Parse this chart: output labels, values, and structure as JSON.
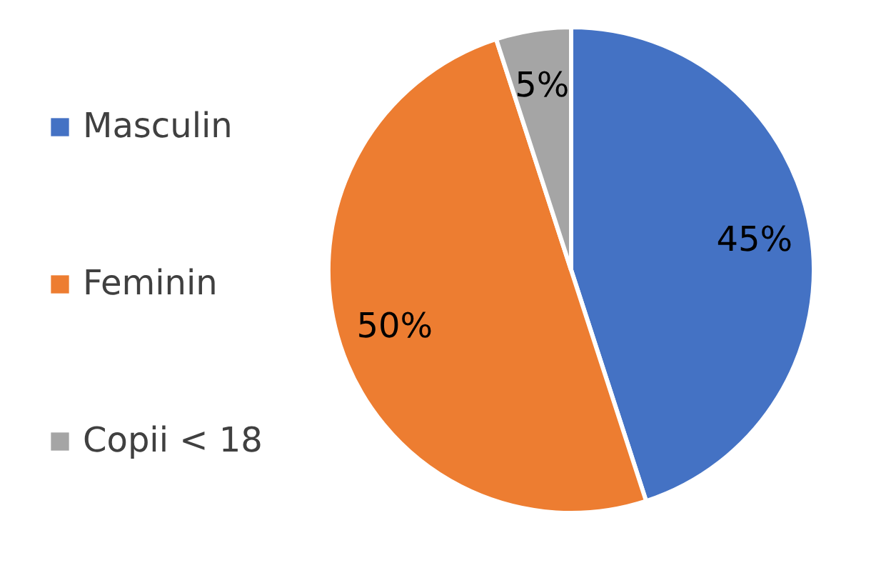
{
  "chart_data": {
    "type": "pie",
    "categories": [
      "Masculin",
      "Feminin",
      "Copii < 18"
    ],
    "values": [
      45,
      50,
      5
    ],
    "colors": [
      "#4472c4",
      "#ed7d31",
      "#a5a5a5"
    ],
    "value_labels": [
      "45%",
      "50%",
      "5%"
    ],
    "legend": "left"
  }
}
